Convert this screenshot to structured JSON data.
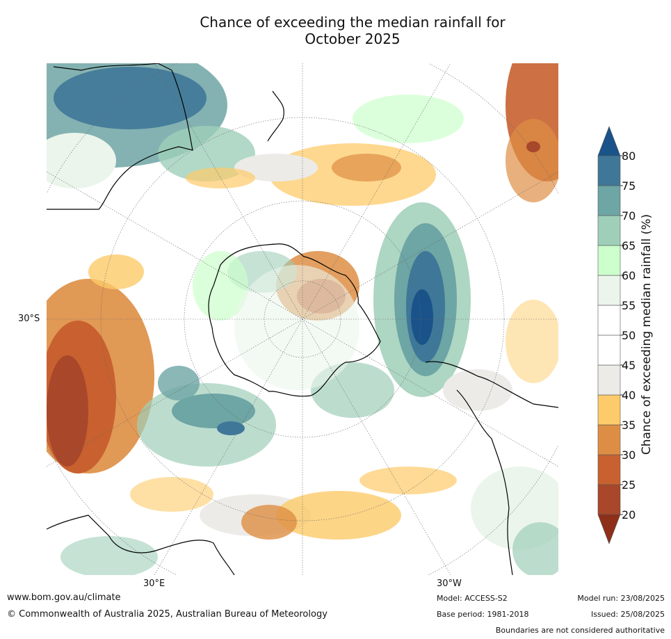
{
  "title_line1": "Chance of exceeding the median rainfall for",
  "title_line2": "October 2025",
  "map": {
    "lat_label": "30°S",
    "lon_labels": {
      "east": "30°E",
      "west": "30°W"
    }
  },
  "colorbar": {
    "title": "Chance of exceeding median rainfall (%)",
    "ticks": [
      20,
      25,
      30,
      35,
      40,
      45,
      50,
      55,
      60,
      65,
      70,
      75,
      80
    ],
    "colors": {
      "below_20": "#8e2f1a",
      "20_25": "#a8472a",
      "25_30": "#c8612f",
      "30_35": "#de8e44",
      "35_40": "#fdcb69",
      "40_45": "#ecebe7",
      "45_50": "#ffffff",
      "50_55": "#ffffff",
      "55_60": "#ebf5eb",
      "60_65": "#ccffcc",
      "65_70": "#9fcfb9",
      "70_75": "#6ea5a5",
      "75_80": "#3f7798",
      "above_80": "#1a5389"
    }
  },
  "footer": {
    "website": "www.bom.gov.au/climate",
    "copyright": "© Commonwealth of Australia 2025, Australian Bureau of Meteorology",
    "model": "Model: ACCESS-S2",
    "base_period": "Base period: 1981-2018",
    "model_run": "Model run: 23/08/2025",
    "issued": "Issued: 25/08/2025",
    "disclaimer": "Boundaries are not considered authoritative"
  }
}
